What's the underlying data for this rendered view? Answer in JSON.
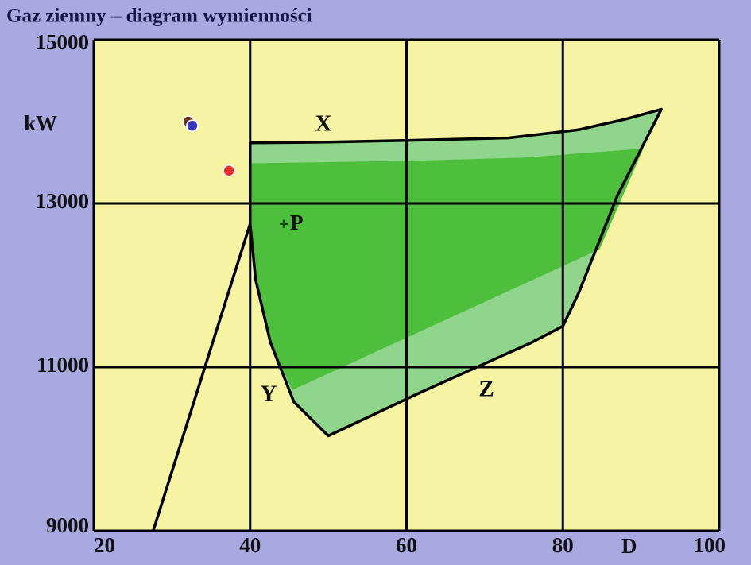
{
  "chart_data": {
    "type": "region",
    "title": "Gaz ziemny – diagram wymienności",
    "x_label": "D",
    "y_label": "kW",
    "xlim": [
      20,
      100
    ],
    "ylim": [
      9000,
      15000
    ],
    "xticks": [
      20,
      40,
      60,
      80,
      100
    ],
    "yticks": [
      9000,
      11000,
      13000,
      15000
    ],
    "grid": true,
    "outline": {
      "color": "#8fd68c",
      "x": [
        40,
        50,
        60,
        73,
        82,
        88,
        92.6,
        87,
        82,
        80,
        76,
        62,
        50,
        45.6,
        42.6,
        40.7,
        40,
        40
      ],
      "y": [
        13740,
        13750,
        13770,
        13800,
        13900,
        14030,
        14150,
        13100,
        11900,
        11500,
        11300,
        10700,
        10160,
        10575,
        11300,
        12070,
        12750,
        13740
      ]
    },
    "core": {
      "color": "#4dbf3c",
      "x": [
        40,
        60,
        75,
        90.3,
        84.7,
        45.4,
        42.6,
        40.7,
        40
      ],
      "y": [
        13490,
        13520,
        13560,
        13670,
        12440,
        10720,
        11300,
        12070,
        12750
      ]
    },
    "line": {
      "x": [
        27.6,
        40
      ],
      "y": [
        9000,
        12750
      ]
    },
    "edge_labels": [
      "X",
      "Y",
      "Z"
    ],
    "points": [
      {
        "color": "#6b3a1a",
        "x": 32.1,
        "y": 14000
      },
      {
        "color": "#3a3ab8",
        "x": 32.6,
        "y": 13950
      },
      {
        "color": "#e83030",
        "x": 37.3,
        "y": 13400
      }
    ],
    "marker": {
      "label": "P",
      "x": 44.3,
      "y": 12750
    }
  }
}
